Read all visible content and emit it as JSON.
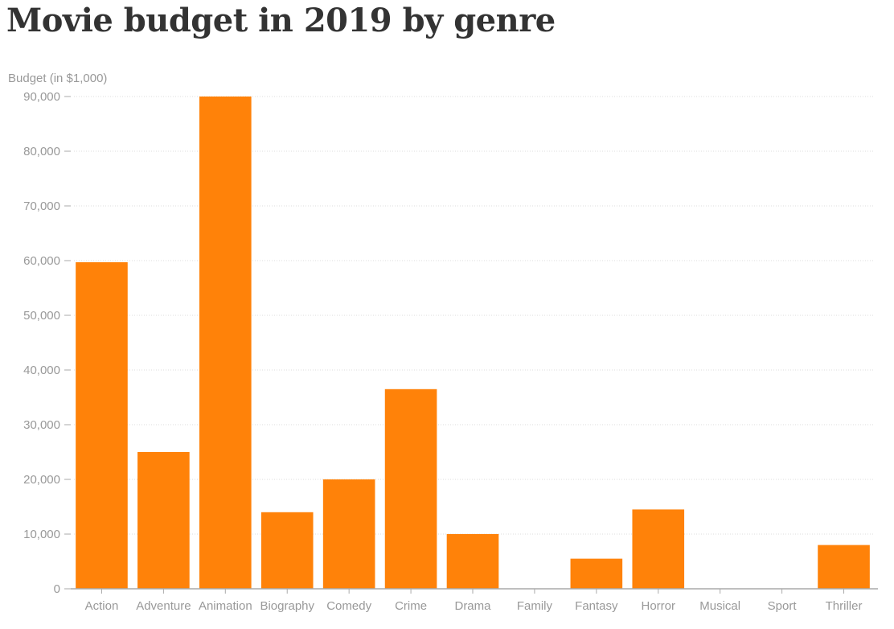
{
  "chart_data": {
    "type": "bar",
    "title": "Movie budget in 2019 by genre",
    "ylabel": "Budget (in $1,000)",
    "xlabel": "",
    "categories": [
      "Action",
      "Adventure",
      "Animation",
      "Biography",
      "Comedy",
      "Crime",
      "Drama",
      "Family",
      "Fantasy",
      "Horror",
      "Musical",
      "Sport",
      "Thriller"
    ],
    "values": [
      59700,
      25000,
      90000,
      14000,
      20000,
      36500,
      10000,
      0,
      5500,
      14500,
      0,
      0,
      8000
    ],
    "ylim": [
      0,
      90000
    ],
    "yticks": [
      0,
      10000,
      20000,
      30000,
      40000,
      50000,
      60000,
      70000,
      80000,
      90000
    ],
    "ytick_labels": [
      "0",
      "10,000",
      "20,000",
      "30,000",
      "40,000",
      "50,000",
      "60,000",
      "70,000",
      "80,000",
      "90,000"
    ],
    "grid": true,
    "bar_color": "#ff8209"
  }
}
